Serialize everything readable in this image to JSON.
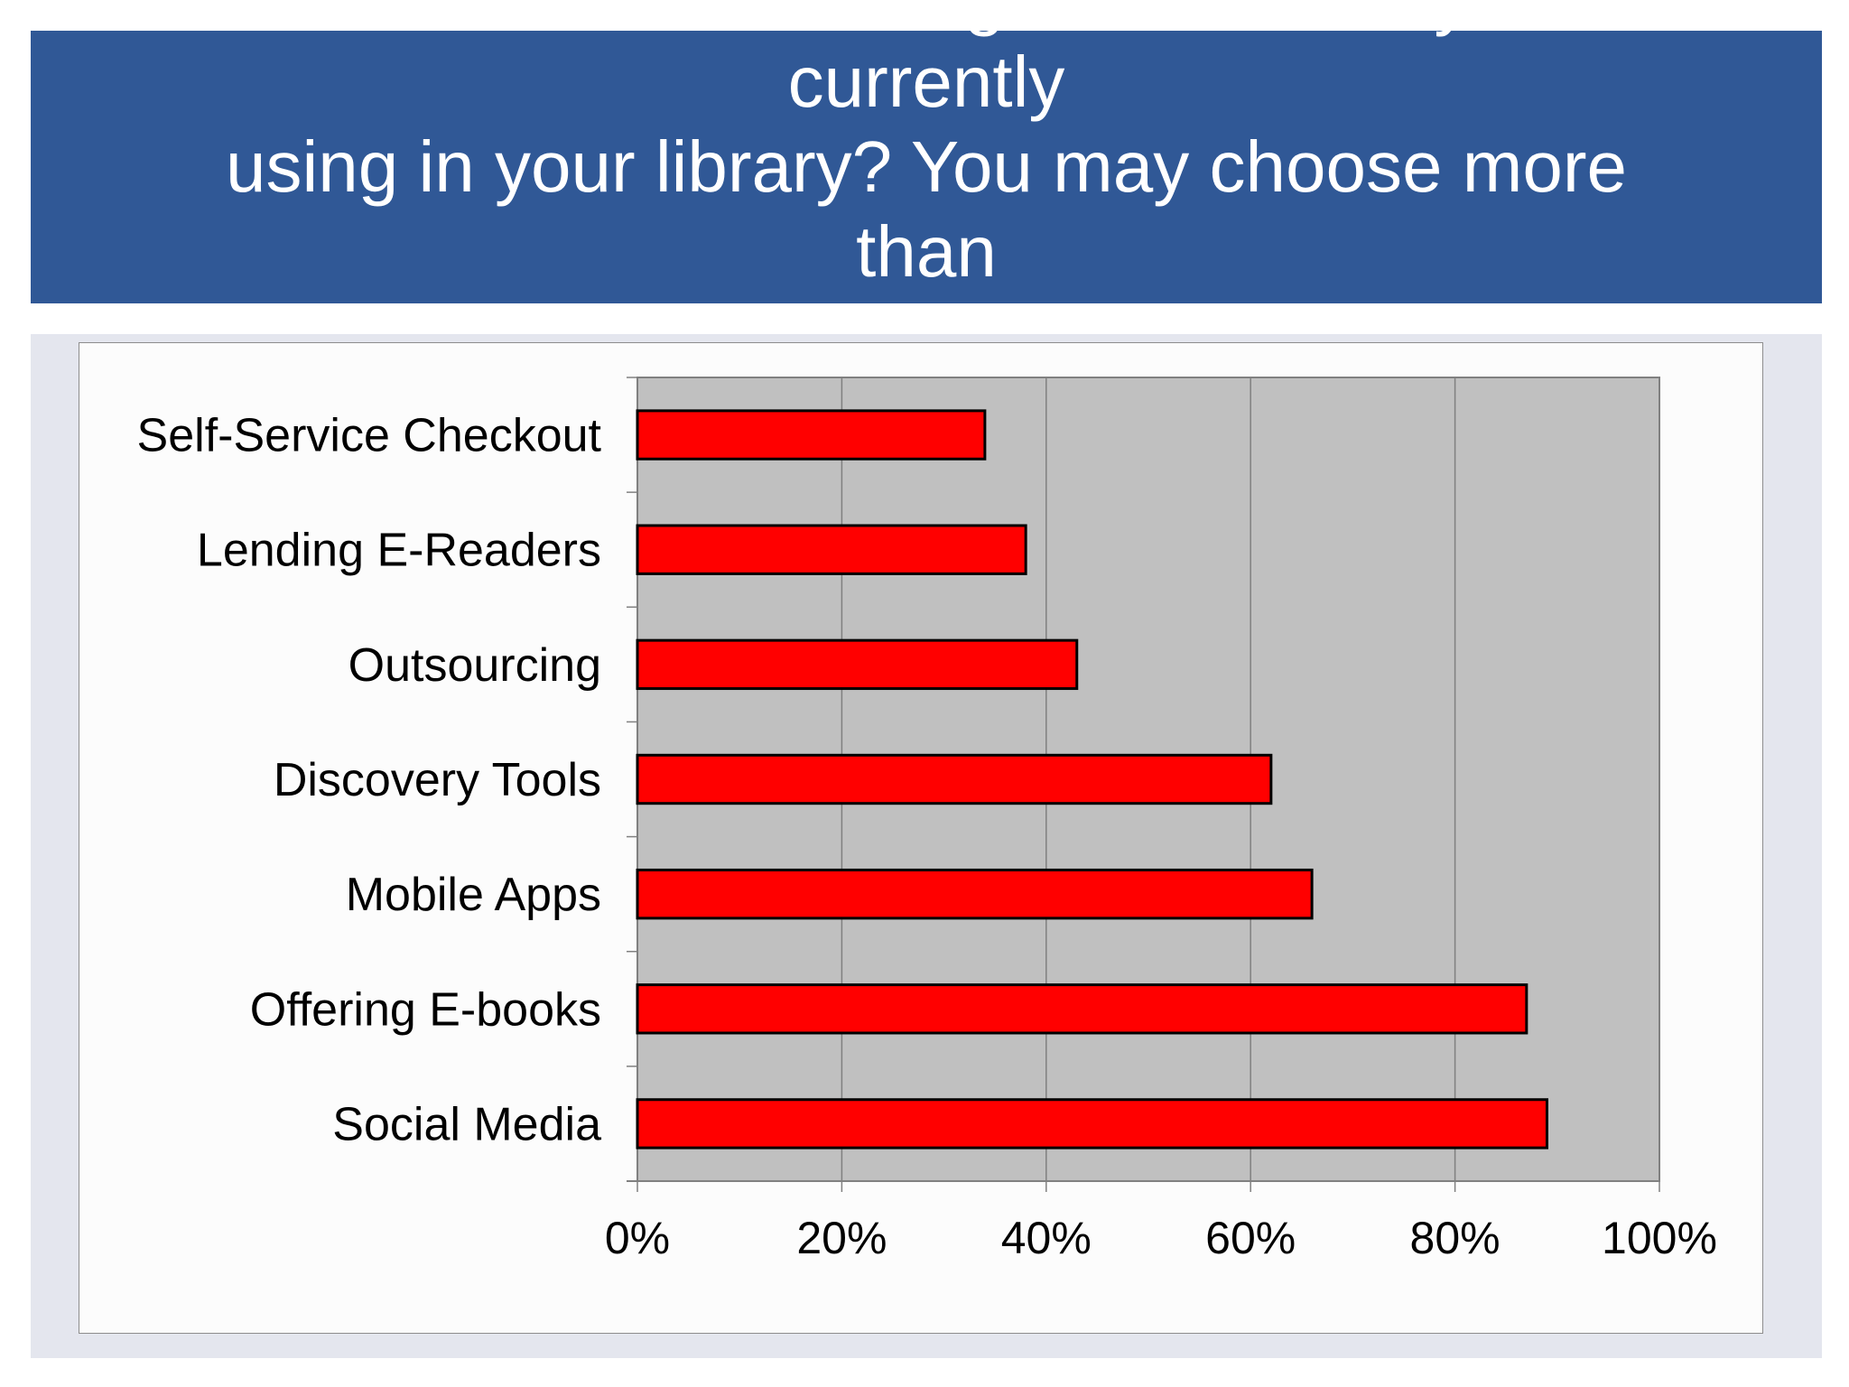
{
  "slide": {
    "title": "Which of the following services are you currently\n using in your library? You may choose more than\none."
  },
  "colors": {
    "banner": "#305896",
    "plot_area": "#c0c0c0",
    "bar": "#ff0000",
    "bar_border": "#000000",
    "gridline": "#808080"
  },
  "chart_data": {
    "type": "bar",
    "orientation": "horizontal",
    "categories": [
      "Self-Service Checkout",
      "Lending E-Readers",
      "Outsourcing",
      "Discovery Tools",
      "Mobile Apps",
      "Offering E-books",
      "Social Media"
    ],
    "values": [
      34,
      38,
      43,
      62,
      66,
      87,
      89
    ],
    "value_unit": "%",
    "xlim": [
      0,
      100
    ],
    "x_ticks": [
      "0%",
      "20%",
      "40%",
      "60%",
      "80%",
      "100%"
    ],
    "grid": true,
    "legend": "none",
    "title": "",
    "xlabel": "",
    "ylabel": ""
  }
}
